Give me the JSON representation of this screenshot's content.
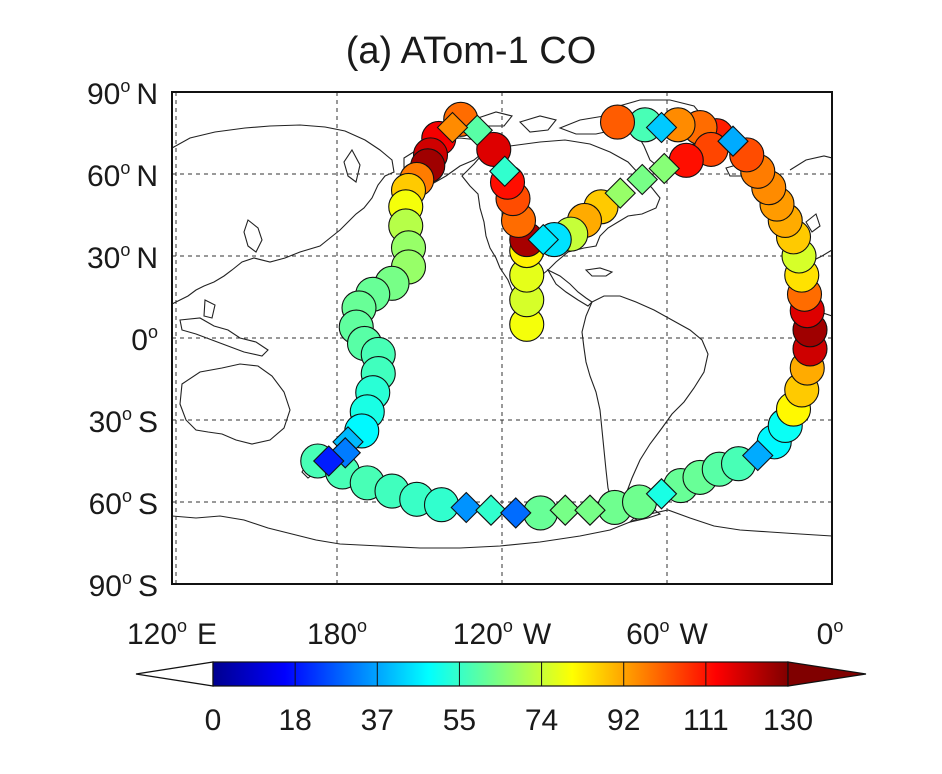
{
  "title": "(a)  ATom-1 CO",
  "map": {
    "lat_labels": [
      {
        "lat": 90,
        "text": "90",
        "hemi": "N"
      },
      {
        "lat": 60,
        "text": "60",
        "hemi": "N"
      },
      {
        "lat": 30,
        "text": "30",
        "hemi": "N"
      },
      {
        "lat": 0,
        "text": "0",
        "hemi": ""
      },
      {
        "lat": -30,
        "text": "30",
        "hemi": "S"
      },
      {
        "lat": -60,
        "text": "60",
        "hemi": "S"
      },
      {
        "lat": -90,
        "text": "90",
        "hemi": "S"
      }
    ],
    "lon_labels": [
      {
        "lon": 120,
        "text": "120",
        "hemi": "E"
      },
      {
        "lon": 180,
        "text": "180",
        "hemi": ""
      },
      {
        "lon": 240,
        "text": "120",
        "hemi": "W"
      },
      {
        "lon": 300,
        "text": "60",
        "hemi": "W"
      },
      {
        "lon": 360,
        "text": "0",
        "hemi": ""
      }
    ],
    "lon_range": [
      120,
      360
    ],
    "lat_range": [
      -90,
      90
    ],
    "gridlines": true
  },
  "colorbar": {
    "min": 0,
    "max": 130,
    "tick_labels": [
      "0",
      "18",
      "37",
      "55",
      "74",
      "92",
      "111",
      "130"
    ],
    "colormap": "jet"
  },
  "chart_data": {
    "type": "scatter",
    "x_unit": "longitude (degrees east)",
    "y_unit": "latitude",
    "value_field": "CO",
    "markers": {
      "circle": "circle",
      "diamond": "diamond"
    },
    "points": [
      {
        "lon": 249,
        "lat": 5,
        "v": 80,
        "m": "circle"
      },
      {
        "lon": 249,
        "lat": 14,
        "v": 76,
        "m": "circle"
      },
      {
        "lon": 249,
        "lat": 23,
        "v": 78,
        "m": "circle"
      },
      {
        "lon": 249,
        "lat": 32,
        "v": 83,
        "m": "circle"
      },
      {
        "lon": 249,
        "lat": 36,
        "v": 125,
        "m": "circle"
      },
      {
        "lon": 246,
        "lat": 43,
        "v": 100,
        "m": "circle"
      },
      {
        "lon": 244,
        "lat": 51,
        "v": 104,
        "m": "circle"
      },
      {
        "lon": 242,
        "lat": 57,
        "v": 112,
        "m": "circle"
      },
      {
        "lon": 241,
        "lat": 61,
        "v": 55,
        "m": "diamond"
      },
      {
        "lon": 237,
        "lat": 69,
        "v": 118,
        "m": "circle"
      },
      {
        "lon": 231,
        "lat": 76,
        "v": 60,
        "m": "diamond"
      },
      {
        "lon": 222,
        "lat": 77,
        "v": 96,
        "m": "diamond"
      },
      {
        "lon": 225,
        "lat": 80,
        "v": 100,
        "m": "circle"
      },
      {
        "lon": 217,
        "lat": 73,
        "v": 115,
        "m": "circle"
      },
      {
        "lon": 214,
        "lat": 67,
        "v": 120,
        "m": "circle"
      },
      {
        "lon": 213,
        "lat": 63,
        "v": 126,
        "m": "circle"
      },
      {
        "lon": 209,
        "lat": 58,
        "v": 98,
        "m": "circle"
      },
      {
        "lon": 206,
        "lat": 54,
        "v": 88,
        "m": "circle"
      },
      {
        "lon": 205,
        "lat": 48,
        "v": 80,
        "m": "circle"
      },
      {
        "lon": 205,
        "lat": 41,
        "v": 72,
        "m": "circle"
      },
      {
        "lon": 206,
        "lat": 33,
        "v": 68,
        "m": "circle"
      },
      {
        "lon": 206,
        "lat": 26,
        "v": 68,
        "m": "circle"
      },
      {
        "lon": 200,
        "lat": 20,
        "v": 64,
        "m": "circle"
      },
      {
        "lon": 193,
        "lat": 16,
        "v": 62,
        "m": "circle"
      },
      {
        "lon": 188,
        "lat": 11,
        "v": 62,
        "m": "circle"
      },
      {
        "lon": 187,
        "lat": 4,
        "v": 61,
        "m": "circle"
      },
      {
        "lon": 190,
        "lat": -2,
        "v": 60,
        "m": "circle"
      },
      {
        "lon": 195,
        "lat": -6,
        "v": 58,
        "m": "circle"
      },
      {
        "lon": 195,
        "lat": -13,
        "v": 57,
        "m": "circle"
      },
      {
        "lon": 193,
        "lat": -20,
        "v": 54,
        "m": "circle"
      },
      {
        "lon": 191,
        "lat": -27,
        "v": 52,
        "m": "circle"
      },
      {
        "lon": 189,
        "lat": -34,
        "v": 48,
        "m": "circle"
      },
      {
        "lon": 184,
        "lat": -38,
        "v": 40,
        "m": "diamond"
      },
      {
        "lon": 183,
        "lat": -42,
        "v": 32,
        "m": "diamond"
      },
      {
        "lon": 177,
        "lat": -45,
        "v": 20,
        "m": "diamond"
      },
      {
        "lon": 173,
        "lat": -45,
        "v": 58,
        "m": "circle"
      },
      {
        "lon": 182,
        "lat": -49,
        "v": 58,
        "m": "circle"
      },
      {
        "lon": 191,
        "lat": -53,
        "v": 58,
        "m": "circle"
      },
      {
        "lon": 200,
        "lat": -56,
        "v": 57,
        "m": "circle"
      },
      {
        "lon": 209,
        "lat": -59,
        "v": 56,
        "m": "circle"
      },
      {
        "lon": 218,
        "lat": -61,
        "v": 55,
        "m": "circle"
      },
      {
        "lon": 227,
        "lat": -62,
        "v": 35,
        "m": "diamond"
      },
      {
        "lon": 236,
        "lat": -63,
        "v": 55,
        "m": "diamond"
      },
      {
        "lon": 245,
        "lat": -64,
        "v": 30,
        "m": "diamond"
      },
      {
        "lon": 254,
        "lat": -64,
        "v": 62,
        "m": "circle"
      },
      {
        "lon": 263,
        "lat": -63,
        "v": 64,
        "m": "diamond"
      },
      {
        "lon": 272,
        "lat": -63,
        "v": 64,
        "m": "diamond"
      },
      {
        "lon": 281,
        "lat": -62,
        "v": 63,
        "m": "circle"
      },
      {
        "lon": 290,
        "lat": -60,
        "v": 63,
        "m": "circle"
      },
      {
        "lon": 298,
        "lat": -57,
        "v": 52,
        "m": "diamond"
      },
      {
        "lon": 305,
        "lat": -54,
        "v": 62,
        "m": "circle"
      },
      {
        "lon": 312,
        "lat": -51,
        "v": 62,
        "m": "circle"
      },
      {
        "lon": 319,
        "lat": -48,
        "v": 60,
        "m": "circle"
      },
      {
        "lon": 326,
        "lat": -46,
        "v": 58,
        "m": "circle"
      },
      {
        "lon": 333,
        "lat": -43,
        "v": 38,
        "m": "diamond"
      },
      {
        "lon": 339,
        "lat": -38,
        "v": 48,
        "m": "circle"
      },
      {
        "lon": 343,
        "lat": -32,
        "v": 50,
        "m": "circle"
      },
      {
        "lon": 346,
        "lat": -26,
        "v": 82,
        "m": "circle"
      },
      {
        "lon": 349,
        "lat": -19,
        "v": 88,
        "m": "circle"
      },
      {
        "lon": 351,
        "lat": -11,
        "v": 92,
        "m": "circle"
      },
      {
        "lon": 352,
        "lat": -4,
        "v": 120,
        "m": "circle"
      },
      {
        "lon": 352,
        "lat": 3,
        "v": 126,
        "m": "circle"
      },
      {
        "lon": 351,
        "lat": 10,
        "v": 118,
        "m": "circle"
      },
      {
        "lon": 350,
        "lat": 16,
        "v": 100,
        "m": "circle"
      },
      {
        "lon": 349,
        "lat": 23,
        "v": 85,
        "m": "circle"
      },
      {
        "lon": 348,
        "lat": 30,
        "v": 76,
        "m": "circle"
      },
      {
        "lon": 346,
        "lat": 37,
        "v": 88,
        "m": "circle"
      },
      {
        "lon": 343,
        "lat": 43,
        "v": 92,
        "m": "circle"
      },
      {
        "lon": 340,
        "lat": 49,
        "v": 94,
        "m": "circle"
      },
      {
        "lon": 337,
        "lat": 55,
        "v": 96,
        "m": "circle"
      },
      {
        "lon": 333,
        "lat": 61,
        "v": 98,
        "m": "circle"
      },
      {
        "lon": 329,
        "lat": 67,
        "v": 104,
        "m": "circle"
      },
      {
        "lon": 324,
        "lat": 72,
        "v": 38,
        "m": "diamond"
      },
      {
        "lon": 318,
        "lat": 74,
        "v": 110,
        "m": "circle"
      },
      {
        "lon": 312,
        "lat": 77,
        "v": 100,
        "m": "circle"
      },
      {
        "lon": 304,
        "lat": 78,
        "v": 96,
        "m": "circle"
      },
      {
        "lon": 298,
        "lat": 77,
        "v": 42,
        "m": "diamond"
      },
      {
        "lon": 292,
        "lat": 78,
        "v": 58,
        "m": "circle"
      },
      {
        "lon": 282,
        "lat": 79,
        "v": 102,
        "m": "circle"
      },
      {
        "lon": 316,
        "lat": 69,
        "v": 105,
        "m": "circle"
      },
      {
        "lon": 307,
        "lat": 65,
        "v": 112,
        "m": "circle"
      },
      {
        "lon": 299,
        "lat": 62,
        "v": 66,
        "m": "diamond"
      },
      {
        "lon": 291,
        "lat": 58,
        "v": 64,
        "m": "diamond"
      },
      {
        "lon": 283,
        "lat": 53,
        "v": 68,
        "m": "diamond"
      },
      {
        "lon": 276,
        "lat": 48,
        "v": 88,
        "m": "circle"
      },
      {
        "lon": 270,
        "lat": 43,
        "v": 92,
        "m": "circle"
      },
      {
        "lon": 265,
        "lat": 38,
        "v": 74,
        "m": "circle"
      },
      {
        "lon": 259,
        "lat": 36,
        "v": 45,
        "m": "circle"
      },
      {
        "lon": 255,
        "lat": 36,
        "v": 46,
        "m": "diamond"
      }
    ]
  }
}
